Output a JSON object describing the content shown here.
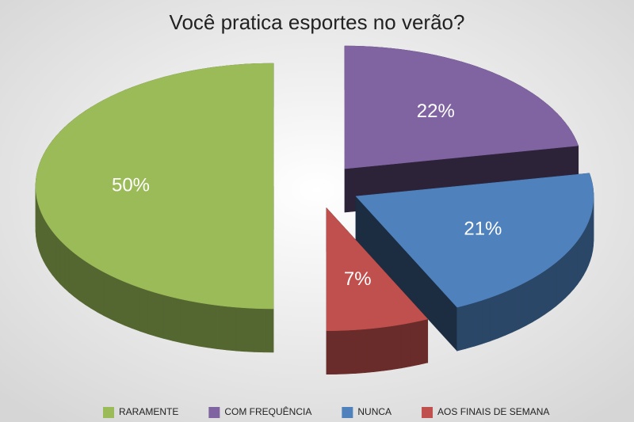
{
  "chart_data": {
    "type": "pie",
    "title": "Você pratica esportes no verão?",
    "categories": [
      "RARAMENTE",
      "COM FREQUÊNCIA",
      "NUNCA",
      "AOS FINAIS DE SEMANA"
    ],
    "values": [
      50,
      22,
      21,
      7
    ],
    "value_labels": [
      "50%",
      "22%",
      "21%",
      "7%"
    ],
    "colors": [
      "#9bbb59",
      "#8064a2",
      "#4f81bd",
      "#c0504d"
    ],
    "legend": "bottom"
  }
}
